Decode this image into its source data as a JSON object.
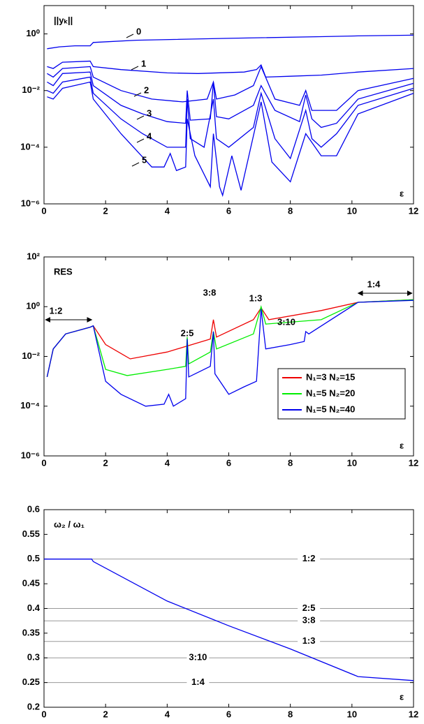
{
  "chart_data": [
    {
      "type": "line",
      "title": "||yₖ||",
      "x_label": "ε",
      "log_y": true,
      "xlim": [
        0,
        12
      ],
      "xticks": [
        0,
        2,
        4,
        6,
        8,
        10,
        12
      ],
      "ylim": [
        1e-06,
        10
      ],
      "yticks": [
        {
          "value": 1e-06,
          "label": "10⁻⁶"
        },
        {
          "value": 0.0001,
          "label": "10⁻⁴"
        },
        {
          "value": 0.01,
          "label": "10⁻²"
        },
        {
          "value": 1,
          "label": "10⁰"
        }
      ],
      "series": [
        {
          "name": "0",
          "color": "#0000ee",
          "x": [
            0.1,
            0.5,
            1.0,
            1.5,
            1.6,
            3,
            6,
            9,
            10.2,
            12
          ],
          "values": [
            0.3,
            0.35,
            0.38,
            0.38,
            0.5,
            0.6,
            0.7,
            0.8,
            0.85,
            0.9
          ]
        },
        {
          "name": "1",
          "color": "#0000ee",
          "x": [
            0.1,
            0.3,
            0.6,
            1.5,
            1.6,
            2.5,
            4,
            5,
            6.5,
            6.9,
            7.05,
            7.2,
            8,
            9,
            10.2,
            12
          ],
          "values": [
            0.07,
            0.06,
            0.1,
            0.11,
            0.07,
            0.055,
            0.042,
            0.04,
            0.045,
            0.055,
            0.08,
            0.03,
            0.032,
            0.035,
            0.045,
            0.06
          ]
        },
        {
          "name": "2",
          "color": "#0000ee",
          "x": [
            0.1,
            0.3,
            0.6,
            1.5,
            1.6,
            2.5,
            3.5,
            4.5,
            5.3,
            5.5,
            5.6,
            6.2,
            6.8,
            7.05,
            7.5,
            8.3,
            8.5,
            8.7,
            9.5,
            10.2,
            12
          ],
          "values": [
            0.04,
            0.03,
            0.06,
            0.07,
            0.03,
            0.01,
            0.005,
            0.004,
            0.005,
            0.02,
            0.005,
            0.007,
            0.015,
            0.07,
            0.005,
            0.003,
            0.01,
            0.002,
            0.002,
            0.01,
            0.027
          ]
        },
        {
          "name": "3",
          "color": "#0000ee",
          "x": [
            0.1,
            0.3,
            0.6,
            1.5,
            1.6,
            2.5,
            3.2,
            4,
            4.6,
            4.65,
            4.75,
            5.4,
            5.5,
            5.6,
            6,
            6.8,
            7.05,
            7.5,
            8.3,
            8.5,
            8.7,
            9,
            9.5,
            10.2,
            12
          ],
          "values": [
            0.02,
            0.015,
            0.04,
            0.045,
            0.015,
            0.003,
            0.0015,
            0.0008,
            0.0007,
            0.01,
            0.0009,
            0.001,
            0.02,
            0.0012,
            0.001,
            0.003,
            0.015,
            0.002,
            0.0008,
            0.007,
            0.001,
            0.0005,
            0.0007,
            0.005,
            0.018
          ]
        },
        {
          "name": "4",
          "color": "#0000ee",
          "x": [
            0.1,
            0.3,
            0.6,
            1.5,
            1.6,
            2.5,
            3.2,
            4,
            4.6,
            4.65,
            4.75,
            5.2,
            5.5,
            5.6,
            6,
            6.8,
            7.05,
            7.5,
            8,
            8.5,
            8.7,
            9,
            9.5,
            10.2,
            12
          ],
          "values": [
            0.01,
            0.008,
            0.02,
            0.03,
            0.008,
            0.001,
            0.0003,
            0.0001,
            0.0001,
            0.005,
            0.0002,
            0.0001,
            0.005,
            0.0002,
            0.0001,
            0.0005,
            0.008,
            0.0002,
            4e-05,
            0.002,
            0.0002,
            0.0001,
            0.0003,
            0.003,
            0.012
          ]
        },
        {
          "name": "5",
          "color": "#0000ee",
          "x": [
            0.1,
            0.3,
            0.6,
            1.5,
            1.6,
            2.5,
            3.5,
            3.9,
            4.1,
            4.3,
            4.6,
            4.65,
            4.9,
            5.4,
            5.5,
            5.7,
            5.8,
            6.1,
            6.4,
            7.05,
            7.4,
            8,
            8.5,
            9,
            9.5,
            10.2,
            12
          ],
          "values": [
            0.006,
            0.005,
            0.012,
            0.02,
            0.005,
            0.0003,
            2e-05,
            2e-05,
            6e-05,
            1.5e-05,
            2e-05,
            0.001,
            5e-05,
            4e-06,
            0.0003,
            4e-06,
            2e-06,
            5e-05,
            3e-06,
            0.004,
            3e-05,
            6e-06,
            0.0003,
            5e-05,
            5e-05,
            0.0015,
            0.008
          ]
        }
      ]
    },
    {
      "type": "line",
      "title": "RES",
      "x_label": "ε",
      "log_y": true,
      "legend": "lower right",
      "xlim": [
        0,
        12
      ],
      "xticks": [
        0,
        2,
        4,
        6,
        8,
        10,
        12
      ],
      "ylim": [
        1e-06,
        100
      ],
      "yticks": [
        {
          "value": 1e-06,
          "label": "10⁻⁶"
        },
        {
          "value": 0.0001,
          "label": "10⁻⁴"
        },
        {
          "value": 0.01,
          "label": "10⁻²"
        },
        {
          "value": 1,
          "label": "10⁰"
        },
        {
          "value": 100,
          "label": "10²"
        }
      ],
      "annotations": [
        "1:2",
        "2:5",
        "3:8",
        "1:3",
        "3:10",
        "1:4"
      ],
      "series": [
        {
          "name": "N₁=3 N₂=15",
          "color": "#ee0000",
          "x": [
            0.1,
            0.3,
            0.7,
            1.5,
            1.6,
            2,
            2.8,
            4,
            5.4,
            5.5,
            5.6,
            6.8,
            7.05,
            7.3,
            9,
            10.2,
            12
          ],
          "values": [
            0.0015,
            0.02,
            0.08,
            0.15,
            0.17,
            0.03,
            0.008,
            0.015,
            0.05,
            0.3,
            0.06,
            0.3,
            0.9,
            0.3,
            0.7,
            1.5,
            1.9
          ]
        },
        {
          "name": "N₁=5 N₂=20",
          "color": "#00ee00",
          "x": [
            0.1,
            0.3,
            0.7,
            1.5,
            1.6,
            2,
            2.7,
            4,
            4.6,
            4.65,
            4.7,
            5.4,
            5.5,
            5.6,
            6.8,
            7.05,
            7.2,
            9,
            10.2,
            12
          ],
          "values": [
            0.0015,
            0.02,
            0.08,
            0.15,
            0.17,
            0.003,
            0.0017,
            0.003,
            0.004,
            0.06,
            0.005,
            0.015,
            0.1,
            0.02,
            0.08,
            1,
            0.2,
            0.3,
            1.5,
            1.9
          ]
        },
        {
          "name": "N₁=5 N₂=40",
          "color": "#0000ee",
          "x": [
            0.1,
            0.3,
            0.7,
            1.5,
            1.6,
            2,
            2.5,
            3.3,
            3.9,
            4.05,
            4.2,
            4.6,
            4.65,
            4.7,
            5.4,
            5.5,
            5.55,
            6,
            6.5,
            6.9,
            7.05,
            7.2,
            8,
            8.45,
            8.5,
            8.6,
            10.2,
            12
          ],
          "values": [
            0.0015,
            0.02,
            0.08,
            0.15,
            0.17,
            0.001,
            0.0003,
            0.0001,
            0.00012,
            0.0003,
            0.0001,
            0.0002,
            0.05,
            0.0015,
            0.004,
            0.1,
            0.002,
            0.0003,
            0.0006,
            0.001,
            0.8,
            0.02,
            0.03,
            0.04,
            0.1,
            0.08,
            1.5,
            1.8
          ]
        }
      ]
    },
    {
      "type": "line",
      "title": "ω₂ / ω₁",
      "x_label": "ε",
      "xlim": [
        0,
        12
      ],
      "xticks": [
        0,
        2,
        4,
        6,
        8,
        10,
        12
      ],
      "ylim": [
        0.2,
        0.6
      ],
      "yticks": [
        0.2,
        0.25,
        0.3,
        0.35,
        0.4,
        0.45,
        0.5,
        0.55,
        0.6
      ],
      "ref_lines": [
        {
          "value": 0.5,
          "label": "1:2"
        },
        {
          "value": 0.4,
          "label": "2:5"
        },
        {
          "value": 0.375,
          "label": "3:8"
        },
        {
          "value": 0.3333,
          "label": "1:3"
        },
        {
          "value": 0.3,
          "label": "3:10"
        },
        {
          "value": 0.25,
          "label": "1:4"
        }
      ],
      "series": [
        {
          "name": "ω₂ / ω₁",
          "color": "#0000ee",
          "x": [
            0,
            1.55,
            1.6,
            4,
            6,
            8,
            10.2,
            12
          ],
          "values": [
            0.5,
            0.5,
            0.495,
            0.415,
            0.365,
            0.318,
            0.262,
            0.254
          ]
        }
      ]
    }
  ]
}
